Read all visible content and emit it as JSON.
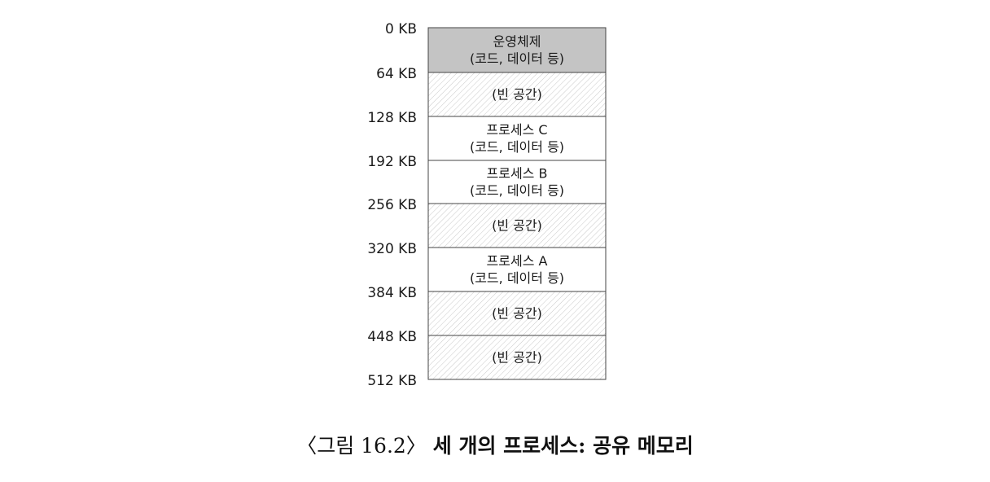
{
  "addresses": [
    "0 KB",
    "64 KB",
    "128 KB",
    "192 KB",
    "256 KB",
    "320 KB",
    "384 KB",
    "448 KB",
    "512 KB"
  ],
  "segments": [
    {
      "kind": "os",
      "lines": [
        "운영체제",
        "(코드, 데이터 등)"
      ],
      "fill": "#c4c4c4"
    },
    {
      "kind": "free",
      "lines": [
        "(빈 공간)"
      ],
      "fill": "#ffffff"
    },
    {
      "kind": "proc",
      "lines": [
        "프로세스 C",
        "(코드, 데이터 등)"
      ],
      "fill": "#ffffff"
    },
    {
      "kind": "proc",
      "lines": [
        "프로세스 B",
        "(코드, 데이터 등)"
      ],
      "fill": "#ffffff"
    },
    {
      "kind": "free",
      "lines": [
        "(빈 공간)"
      ],
      "fill": "#ffffff"
    },
    {
      "kind": "proc",
      "lines": [
        "프로세스 A",
        "(코드, 데이터 등)"
      ],
      "fill": "#ffffff"
    },
    {
      "kind": "free",
      "lines": [
        "(빈 공간)"
      ],
      "fill": "#ffffff"
    },
    {
      "kind": "free",
      "lines": [
        "(빈 공간)"
      ],
      "fill": "#ffffff"
    }
  ],
  "caption": {
    "label": "〈그림 16.2〉",
    "title": "세 개의 프로세스: 공유 메모리"
  }
}
